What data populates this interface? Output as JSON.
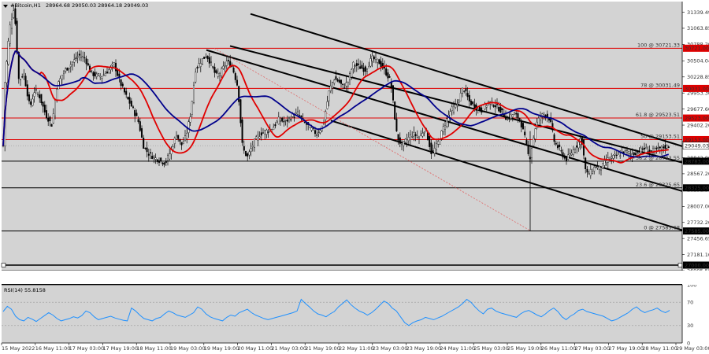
{
  "chart_data": {
    "type": "candlestick",
    "title": "#Bitcoin,H1",
    "ohlc_header": "28964.68 29050.03 28964.18 29049.03",
    "price_axis": {
      "ylim": [
        26905.55,
        31522.0
      ],
      "ticks": [
        "31339.49",
        "31063.85",
        "30788.20",
        "30504.04",
        "30228.85",
        "29953.30",
        "29677.60",
        "29402.20",
        "29126.58",
        "28842.00",
        "28567.20",
        "28291.50",
        "28007.00",
        "27732.20",
        "27456.65",
        "27181.10",
        "26905.55"
      ]
    },
    "x_ticks": [
      "15 May 2022",
      "16 May 11:00",
      "17 May 03:00",
      "17 May 19:00",
      "18 May 11:00",
      "19 May 03:00",
      "19 May 19:00",
      "20 May 11:00",
      "21 May 03:00",
      "21 May 19:00",
      "22 May 11:00",
      "23 May 03:00",
      "23 May 19:00",
      "24 May 11:00",
      "25 May 03:00",
      "25 May 19:00",
      "26 May 11:00",
      "27 May 03:00",
      "27 May 19:00",
      "28 May 11:00",
      "29 May 03:00"
    ],
    "current_price": "29049.03",
    "fib_levels": [
      {
        "label": "100 @ 30721.33",
        "price": 30721.33,
        "tag": "30721.00",
        "color": "#e00000"
      },
      {
        "label": "78 @ 30031.49",
        "price": 30031.49,
        "tag": "30031.00",
        "color": "#e00000"
      },
      {
        "label": "61.8 @ 29523.51",
        "price": 29523.51,
        "tag": "29523.00",
        "color": "#e00000"
      },
      {
        "label": "50 @ 29153.51",
        "price": 29153.51,
        "tag": "29153.00",
        "color": "#e00000"
      },
      {
        "label": "38.2 @ 28783.55",
        "price": 28783.55,
        "tag": "28783.00",
        "color": "#000000"
      },
      {
        "label": "23.6 @ 28325.65",
        "price": 28325.65,
        "tag": "28325.00",
        "color": "#000000"
      },
      {
        "label": "0 @ 27585.68",
        "price": 27585.68,
        "tag": "27585.00",
        "color": "#000000"
      }
    ],
    "bottom_level": {
      "price": 27000.0,
      "tag": "27000.00"
    },
    "rsi": {
      "label": "RSI(14) 55.8158",
      "ticks": [
        "100",
        "70",
        "30",
        "0"
      ],
      "values": [
        54,
        63,
        58,
        46,
        40,
        38,
        44,
        41,
        37,
        42,
        47,
        52,
        48,
        42,
        38,
        40,
        42,
        45,
        43,
        47,
        55,
        52,
        45,
        40,
        42,
        44,
        46,
        43,
        41,
        39,
        38,
        60,
        55,
        48,
        42,
        40,
        38,
        42,
        44,
        50,
        55,
        52,
        48,
        46,
        44,
        48,
        52,
        62,
        58,
        50,
        45,
        42,
        40,
        38,
        44,
        48,
        46,
        52,
        55,
        58,
        52,
        48,
        45,
        42,
        40,
        42,
        44,
        46,
        48,
        50,
        52,
        55,
        75,
        68,
        62,
        55,
        50,
        48,
        45,
        50,
        54,
        62,
        68,
        74,
        66,
        60,
        55,
        52,
        48,
        52,
        58,
        65,
        72,
        68,
        60,
        55,
        45,
        35,
        30,
        35,
        38,
        40,
        44,
        42,
        40,
        43,
        46,
        50,
        54,
        58,
        62,
        68,
        75,
        70,
        62,
        55,
        50,
        58,
        60,
        55,
        52,
        50,
        48,
        46,
        44,
        50,
        54,
        56,
        52,
        48,
        45,
        50,
        56,
        60,
        54,
        45,
        40,
        46,
        50,
        56,
        58,
        54,
        52,
        50,
        48,
        46,
        42,
        38,
        40,
        44,
        48,
        52,
        58,
        62,
        56,
        52,
        55,
        57,
        60,
        55,
        52,
        56
      ]
    }
  }
}
